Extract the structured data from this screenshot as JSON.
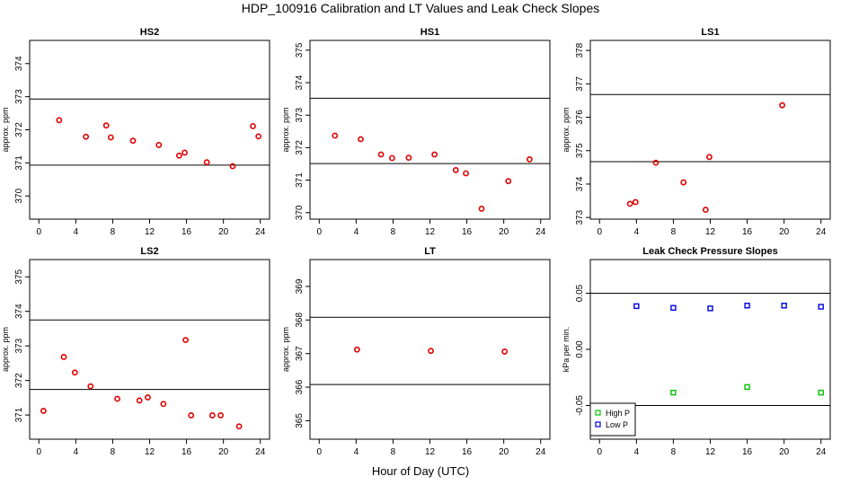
{
  "figure": {
    "title": "HDP_100916  Calibration and LT Values and Leak Check Slopes",
    "xlabel": "Hour of Day (UTC)"
  },
  "chart_data": [
    {
      "type": "scatter",
      "title": "HS2",
      "ylabel": "approx. ppm",
      "xlim": [
        -1,
        25
      ],
      "ylim": [
        369.3,
        374.7
      ],
      "xticks": [
        0,
        4,
        8,
        12,
        16,
        20,
        24
      ],
      "yticks": [
        370,
        371,
        372,
        373,
        374
      ],
      "hlines": [
        372.93,
        370.93
      ],
      "series": [
        {
          "marker": "circle",
          "color": "#e00000",
          "x": [
            2.2,
            5.1,
            7.3,
            7.8,
            10.2,
            13.0,
            15.2,
            15.8,
            18.2,
            21.0,
            23.2,
            23.8
          ],
          "y": [
            372.29,
            371.79,
            372.13,
            371.77,
            371.67,
            371.54,
            371.22,
            371.31,
            371.02,
            370.9,
            372.11,
            371.8
          ]
        }
      ]
    },
    {
      "type": "scatter",
      "title": "HS1",
      "ylabel": "approx. ppm",
      "xlim": [
        -1,
        25
      ],
      "ylim": [
        369.8,
        375.3
      ],
      "xticks": [
        0,
        4,
        8,
        12,
        16,
        20,
        24
      ],
      "yticks": [
        370,
        371,
        372,
        373,
        374,
        375
      ],
      "hlines": [
        373.52,
        371.51
      ],
      "series": [
        {
          "marker": "circle",
          "color": "#e00000",
          "x": [
            1.7,
            4.5,
            6.7,
            7.9,
            9.7,
            12.5,
            14.8,
            15.9,
            17.6,
            20.5,
            22.8
          ],
          "y": [
            372.37,
            372.26,
            371.79,
            371.68,
            371.69,
            371.79,
            371.31,
            371.21,
            370.12,
            370.97,
            371.64
          ]
        }
      ]
    },
    {
      "type": "scatter",
      "title": "LS1",
      "ylabel": "approx. ppm",
      "xlim": [
        -1,
        25
      ],
      "ylim": [
        372.95,
        378.3
      ],
      "xticks": [
        0,
        4,
        8,
        12,
        16,
        20,
        24
      ],
      "yticks": [
        373,
        374,
        375,
        376,
        377,
        378
      ],
      "hlines": [
        376.68,
        374.67
      ],
      "series": [
        {
          "marker": "circle",
          "color": "#e00000",
          "x": [
            3.3,
            3.9,
            6.1,
            9.1,
            11.5,
            11.9,
            19.8
          ],
          "y": [
            373.41,
            373.46,
            374.64,
            374.05,
            373.23,
            374.81,
            376.36
          ]
        }
      ]
    },
    {
      "type": "scatter",
      "title": "LS2",
      "ylabel": "approx. ppm",
      "xlim": [
        -1,
        25
      ],
      "ylim": [
        370.3,
        375.5
      ],
      "xticks": [
        0,
        4,
        8,
        12,
        16,
        20,
        24
      ],
      "yticks": [
        371,
        372,
        373,
        374,
        375
      ],
      "hlines": [
        373.75,
        371.74
      ],
      "series": [
        {
          "marker": "circle",
          "color": "#e00000",
          "x": [
            0.5,
            2.7,
            3.9,
            5.6,
            8.5,
            10.9,
            11.8,
            13.5,
            15.9,
            16.5,
            18.8,
            19.7,
            21.7
          ],
          "y": [
            371.12,
            372.68,
            372.23,
            371.83,
            371.47,
            371.42,
            371.51,
            371.32,
            373.17,
            370.99,
            370.99,
            370.99,
            370.67
          ]
        }
      ]
    },
    {
      "type": "scatter",
      "title": "LT",
      "ylabel": "approx. ppm",
      "xlim": [
        -1,
        25
      ],
      "ylim": [
        364.45,
        369.8
      ],
      "xticks": [
        0,
        4,
        8,
        12,
        16,
        20,
        24
      ],
      "yticks": [
        365,
        366,
        367,
        368,
        369
      ],
      "hlines": [
        368.08,
        366.08
      ],
      "series": [
        {
          "marker": "circle",
          "color": "#e00000",
          "x": [
            4.1,
            12.1,
            20.1
          ],
          "y": [
            367.12,
            367.08,
            367.06
          ]
        }
      ]
    },
    {
      "type": "scatter",
      "title": "Leak Check Pressure Slopes",
      "ylabel": "kPa per min.",
      "xlim": [
        -1,
        25
      ],
      "ylim": [
        -0.08,
        0.08
      ],
      "xticks": [
        0,
        4,
        8,
        12,
        16,
        20,
        24
      ],
      "yticks": [
        -0.05,
        0.0,
        0.05
      ],
      "ytick_labels": [
        "-0.05",
        "0.00",
        "0.05"
      ],
      "hlines": [
        0.05,
        -0.05
      ],
      "legend": "bottom-left",
      "series": [
        {
          "name": "High P",
          "marker": "square",
          "color": "#00c000",
          "x": [
            8,
            16,
            24
          ],
          "y": [
            -0.0385,
            -0.0335,
            -0.0385
          ]
        },
        {
          "name": "Low P",
          "marker": "square",
          "color": "#0000e0",
          "x": [
            4,
            8,
            12,
            16,
            20,
            24
          ],
          "y": [
            0.0385,
            0.037,
            0.0365,
            0.039,
            0.039,
            0.038
          ]
        }
      ]
    }
  ]
}
